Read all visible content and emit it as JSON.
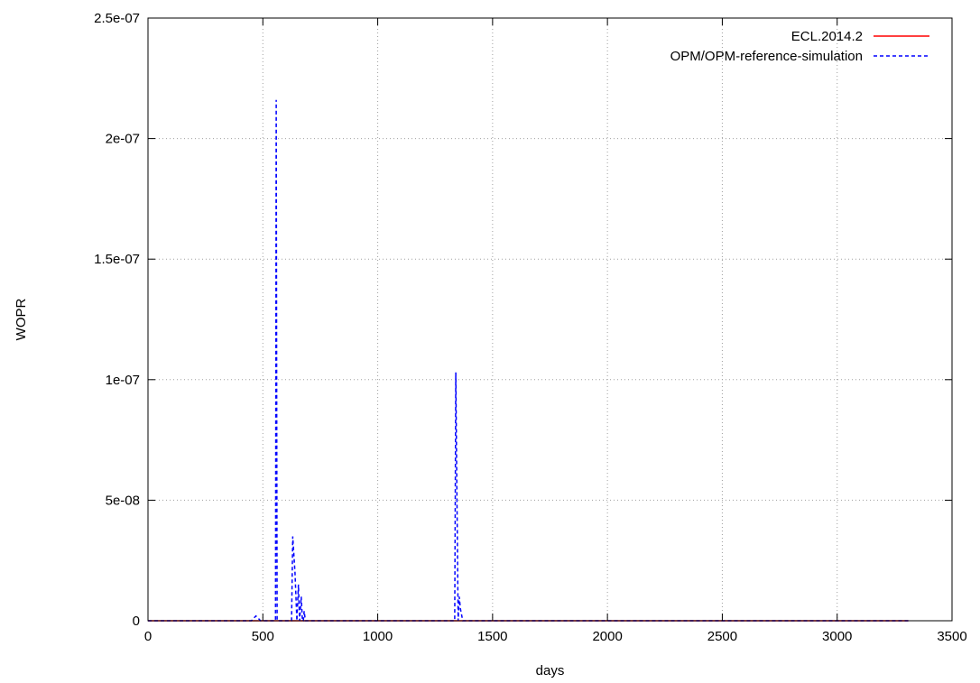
{
  "chart_data": {
    "type": "line",
    "xlabel": "days",
    "ylabel": "WOPR",
    "xlim": [
      0,
      3500
    ],
    "ylim": [
      0,
      2.5e-07
    ],
    "x_ticks": [
      0,
      500,
      1000,
      1500,
      2000,
      2500,
      3000,
      3500
    ],
    "x_tick_labels": [
      "0",
      "500",
      "1000",
      "1500",
      "2000",
      "2500",
      "3000",
      "3500"
    ],
    "y_ticks": [
      0,
      5e-08,
      1e-07,
      1.5e-07,
      2e-07,
      2.5e-07
    ],
    "y_tick_labels": [
      "0",
      "5e-08",
      "1e-07",
      "1.5e-07",
      "2e-07",
      "2.5e-07"
    ],
    "grid": true,
    "legend_position": "top-right",
    "series": [
      {
        "name": "ECL.2014.2",
        "color": "#ff0000",
        "style": "solid",
        "x": [
          0,
          3310
        ],
        "y": [
          0,
          0
        ]
      },
      {
        "name": "OPM/OPM-reference-simulation",
        "color": "#0000ff",
        "style": "dashed",
        "x": [
          0,
          450,
          460,
          470,
          480,
          490,
          550,
          555,
          558,
          560,
          562,
          565,
          620,
          625,
          630,
          640,
          648,
          655,
          660,
          667,
          672,
          676,
          680,
          685,
          700,
          1325,
          1335,
          1340,
          1345,
          1350,
          1355,
          1360,
          1370,
          3310
        ],
        "y": [
          0,
          0,
          1e-09,
          2e-09,
          1e-09,
          0,
          0,
          0,
          2.16e-07,
          1e-07,
          0,
          0,
          0,
          0,
          3.5e-08,
          2e-08,
          0,
          1.5e-08,
          0,
          1e-08,
          0,
          0,
          4e-09,
          0,
          0,
          0,
          0,
          1.03e-07,
          5e-08,
          0,
          1e-08,
          5e-09,
          0,
          0
        ]
      }
    ]
  }
}
